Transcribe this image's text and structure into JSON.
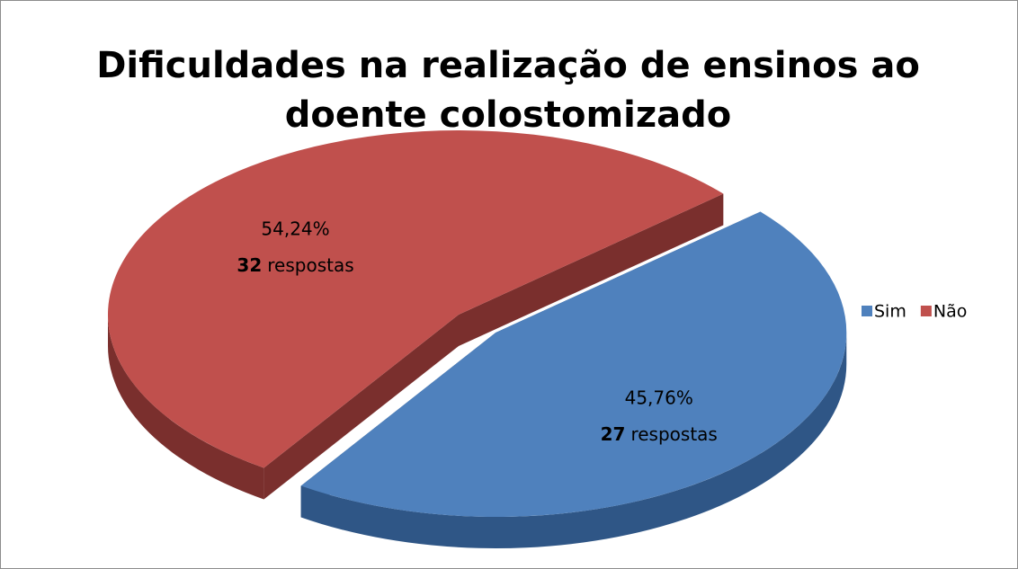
{
  "chart_data": {
    "type": "pie3d",
    "title": "Dificuldades na realização de ensinos ao doente colostomizado",
    "categories": [
      "Sim",
      "Não"
    ],
    "values": [
      45.76,
      54.24
    ],
    "value_labels": [
      "45,76%",
      "54,24%"
    ],
    "counts": [
      27,
      32
    ],
    "count_unit": "respostas",
    "colors": [
      "#4f81bd",
      "#c0504d"
    ],
    "side_colors": [
      "#2f5686",
      "#7a2f2d"
    ],
    "legend": "right"
  }
}
